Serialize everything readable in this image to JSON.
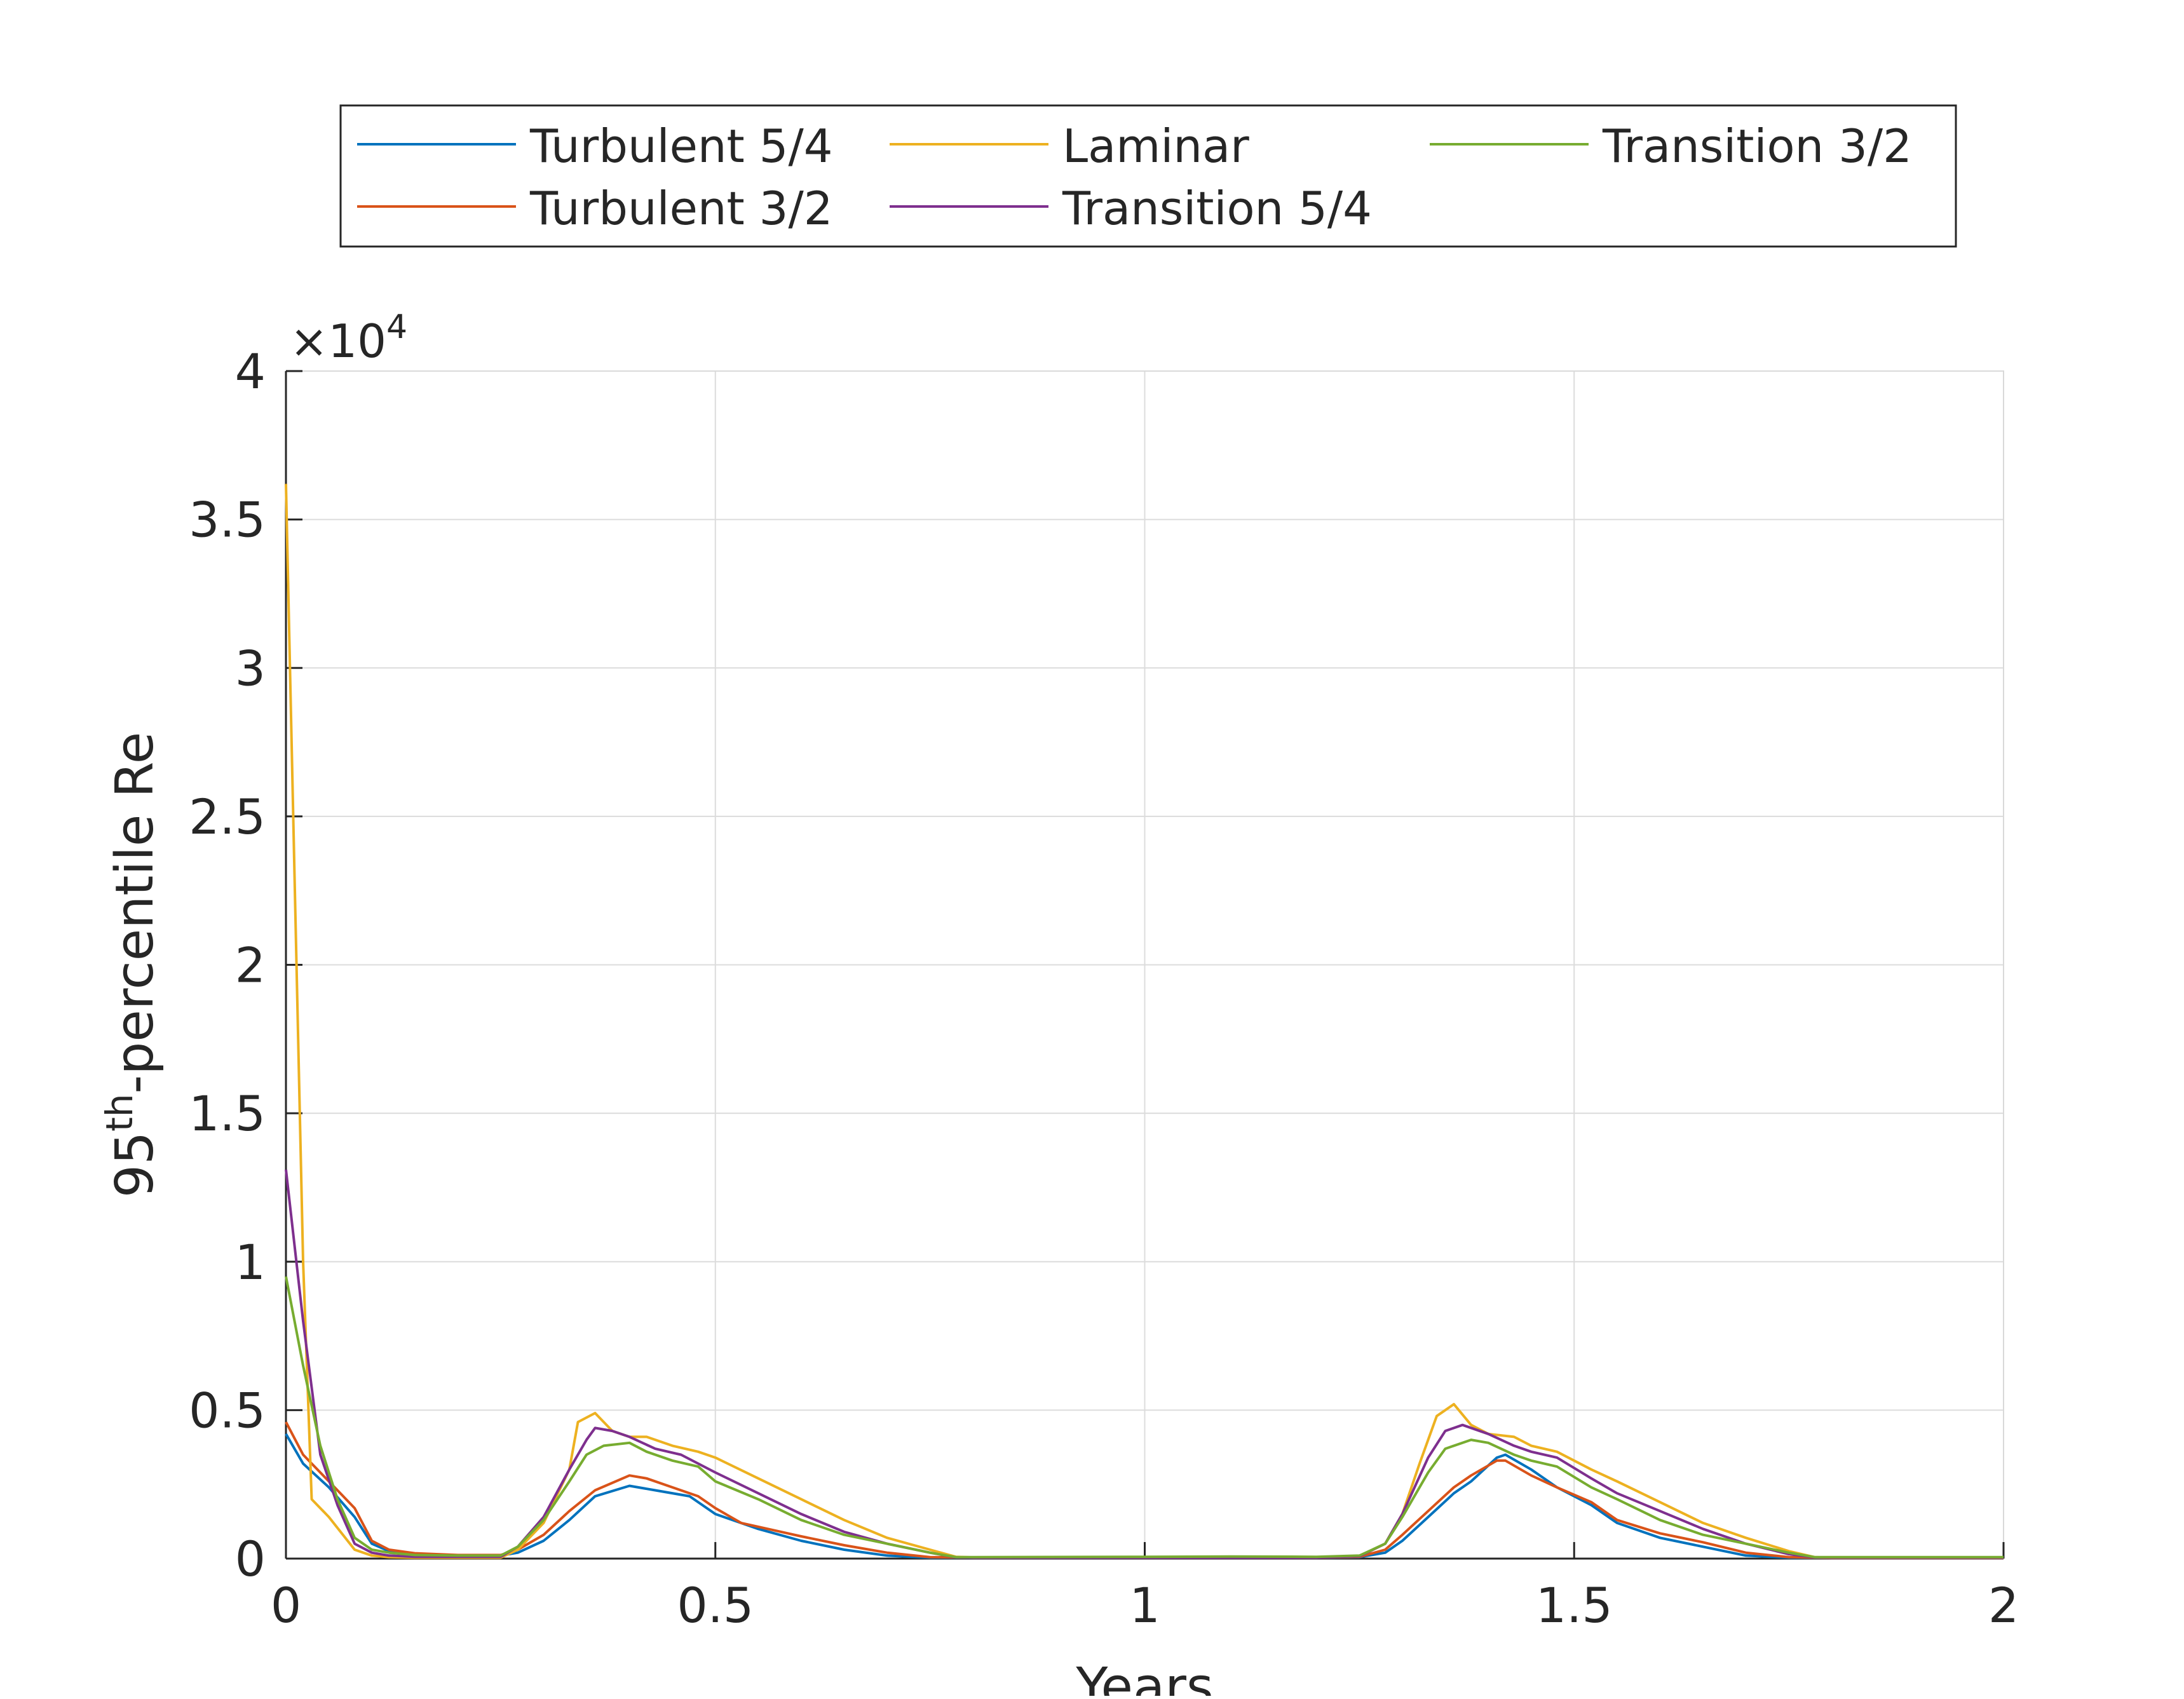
{
  "chart_data": {
    "type": "line",
    "title": "",
    "xlabel": "Years",
    "ylabel_base": "95",
    "ylabel_sup": "th",
    "ylabel_rest": "-percentile Re",
    "y_exponent_prefix": "×10",
    "y_exponent": "4",
    "xlim": [
      0,
      2
    ],
    "ylim": [
      0,
      4
    ],
    "xticks": [
      0,
      0.5,
      1,
      1.5,
      2
    ],
    "xtick_labels": [
      "0",
      "0.5",
      "1",
      "1.5",
      "2"
    ],
    "yticks": [
      0,
      0.5,
      1,
      1.5,
      2,
      2.5,
      3,
      3.5,
      4
    ],
    "ytick_labels": [
      "0",
      "0.5",
      "1",
      "1.5",
      "2",
      "2.5",
      "3",
      "3.5",
      "4"
    ],
    "grid": true,
    "legend_position": "top-outside",
    "series": [
      {
        "name": "Turbulent 5/4",
        "color": "#0072bd",
        "points": [
          [
            0,
            0.42
          ],
          [
            0.02,
            0.32
          ],
          [
            0.05,
            0.24
          ],
          [
            0.08,
            0.14
          ],
          [
            0.1,
            0.05
          ],
          [
            0.12,
            0.025
          ],
          [
            0.15,
            0.015
          ],
          [
            0.2,
            0.01
          ],
          [
            0.25,
            0.01
          ],
          [
            0.27,
            0.02
          ],
          [
            0.3,
            0.06
          ],
          [
            0.33,
            0.13
          ],
          [
            0.36,
            0.21
          ],
          [
            0.4,
            0.245
          ],
          [
            0.43,
            0.23
          ],
          [
            0.47,
            0.21
          ],
          [
            0.5,
            0.15
          ],
          [
            0.55,
            0.1
          ],
          [
            0.6,
            0.06
          ],
          [
            0.65,
            0.03
          ],
          [
            0.7,
            0.01
          ],
          [
            0.75,
            0.003
          ],
          [
            0.8,
            0.003
          ],
          [
            1.0,
            0.003
          ],
          [
            1.2,
            0.003
          ],
          [
            1.25,
            0.005
          ],
          [
            1.28,
            0.02
          ],
          [
            1.3,
            0.06
          ],
          [
            1.33,
            0.14
          ],
          [
            1.36,
            0.22
          ],
          [
            1.38,
            0.26
          ],
          [
            1.41,
            0.34
          ],
          [
            1.42,
            0.35
          ],
          [
            1.45,
            0.3
          ],
          [
            1.48,
            0.24
          ],
          [
            1.52,
            0.18
          ],
          [
            1.55,
            0.12
          ],
          [
            1.6,
            0.07
          ],
          [
            1.65,
            0.04
          ],
          [
            1.7,
            0.01
          ],
          [
            1.75,
            0.003
          ],
          [
            1.8,
            0.002
          ],
          [
            2.0,
            0.002
          ]
        ]
      },
      {
        "name": "Turbulent 3/2",
        "color": "#d95319",
        "points": [
          [
            0,
            0.46
          ],
          [
            0.02,
            0.35
          ],
          [
            0.05,
            0.26
          ],
          [
            0.08,
            0.17
          ],
          [
            0.1,
            0.06
          ],
          [
            0.12,
            0.03
          ],
          [
            0.15,
            0.018
          ],
          [
            0.2,
            0.012
          ],
          [
            0.25,
            0.012
          ],
          [
            0.27,
            0.03
          ],
          [
            0.3,
            0.08
          ],
          [
            0.33,
            0.16
          ],
          [
            0.36,
            0.23
          ],
          [
            0.4,
            0.28
          ],
          [
            0.42,
            0.27
          ],
          [
            0.45,
            0.24
          ],
          [
            0.48,
            0.21
          ],
          [
            0.5,
            0.17
          ],
          [
            0.53,
            0.12
          ],
          [
            0.6,
            0.075
          ],
          [
            0.65,
            0.045
          ],
          [
            0.7,
            0.02
          ],
          [
            0.75,
            0.005
          ],
          [
            0.8,
            0.003
          ],
          [
            1.0,
            0.003
          ],
          [
            1.2,
            0.003
          ],
          [
            1.25,
            0.006
          ],
          [
            1.28,
            0.03
          ],
          [
            1.3,
            0.08
          ],
          [
            1.33,
            0.16
          ],
          [
            1.36,
            0.24
          ],
          [
            1.38,
            0.28
          ],
          [
            1.41,
            0.33
          ],
          [
            1.42,
            0.33
          ],
          [
            1.45,
            0.28
          ],
          [
            1.48,
            0.24
          ],
          [
            1.52,
            0.19
          ],
          [
            1.55,
            0.13
          ],
          [
            1.6,
            0.085
          ],
          [
            1.65,
            0.055
          ],
          [
            1.7,
            0.02
          ],
          [
            1.75,
            0.005
          ],
          [
            1.8,
            0.002
          ],
          [
            2.0,
            0.002
          ]
        ]
      },
      {
        "name": "Laminar",
        "color": "#edb120",
        "points": [
          [
            0,
            3.62
          ],
          [
            0.01,
            2.3
          ],
          [
            0.02,
            1.0
          ],
          [
            0.03,
            0.2
          ],
          [
            0.05,
            0.14
          ],
          [
            0.08,
            0.03
          ],
          [
            0.1,
            0.01
          ],
          [
            0.12,
            0.005
          ],
          [
            0.15,
            0.003
          ],
          [
            0.2,
            0.003
          ],
          [
            0.25,
            0.003
          ],
          [
            0.27,
            0.03
          ],
          [
            0.3,
            0.12
          ],
          [
            0.33,
            0.3
          ],
          [
            0.34,
            0.46
          ],
          [
            0.36,
            0.49
          ],
          [
            0.38,
            0.43
          ],
          [
            0.4,
            0.41
          ],
          [
            0.42,
            0.41
          ],
          [
            0.45,
            0.38
          ],
          [
            0.48,
            0.36
          ],
          [
            0.5,
            0.34
          ],
          [
            0.55,
            0.27
          ],
          [
            0.6,
            0.2
          ],
          [
            0.65,
            0.13
          ],
          [
            0.7,
            0.07
          ],
          [
            0.75,
            0.03
          ],
          [
            0.78,
            0.006
          ],
          [
            0.8,
            0.004
          ],
          [
            1.0,
            0.004
          ],
          [
            1.2,
            0.004
          ],
          [
            1.25,
            0.008
          ],
          [
            1.28,
            0.05
          ],
          [
            1.3,
            0.15
          ],
          [
            1.32,
            0.32
          ],
          [
            1.34,
            0.48
          ],
          [
            1.36,
            0.52
          ],
          [
            1.38,
            0.45
          ],
          [
            1.4,
            0.42
          ],
          [
            1.43,
            0.41
          ],
          [
            1.45,
            0.38
          ],
          [
            1.48,
            0.36
          ],
          [
            1.52,
            0.3
          ],
          [
            1.55,
            0.26
          ],
          [
            1.6,
            0.19
          ],
          [
            1.65,
            0.12
          ],
          [
            1.7,
            0.07
          ],
          [
            1.75,
            0.025
          ],
          [
            1.78,
            0.005
          ],
          [
            1.8,
            0.003
          ],
          [
            2.0,
            0.003
          ]
        ]
      },
      {
        "name": "Transition 5/4",
        "color": "#7e2f8e",
        "points": [
          [
            0,
            1.31
          ],
          [
            0.02,
            0.8
          ],
          [
            0.04,
            0.35
          ],
          [
            0.06,
            0.18
          ],
          [
            0.08,
            0.05
          ],
          [
            0.1,
            0.02
          ],
          [
            0.12,
            0.01
          ],
          [
            0.15,
            0.006
          ],
          [
            0.2,
            0.006
          ],
          [
            0.25,
            0.006
          ],
          [
            0.27,
            0.04
          ],
          [
            0.3,
            0.14
          ],
          [
            0.33,
            0.3
          ],
          [
            0.35,
            0.4
          ],
          [
            0.36,
            0.44
          ],
          [
            0.38,
            0.43
          ],
          [
            0.4,
            0.41
          ],
          [
            0.43,
            0.37
          ],
          [
            0.46,
            0.35
          ],
          [
            0.5,
            0.29
          ],
          [
            0.55,
            0.22
          ],
          [
            0.6,
            0.15
          ],
          [
            0.65,
            0.09
          ],
          [
            0.7,
            0.05
          ],
          [
            0.75,
            0.02
          ],
          [
            0.78,
            0.004
          ],
          [
            0.8,
            0.003
          ],
          [
            1.0,
            0.003
          ],
          [
            1.2,
            0.003
          ],
          [
            1.25,
            0.008
          ],
          [
            1.28,
            0.05
          ],
          [
            1.3,
            0.15
          ],
          [
            1.33,
            0.34
          ],
          [
            1.35,
            0.43
          ],
          [
            1.37,
            0.45
          ],
          [
            1.4,
            0.42
          ],
          [
            1.43,
            0.38
          ],
          [
            1.45,
            0.36
          ],
          [
            1.48,
            0.34
          ],
          [
            1.52,
            0.27
          ],
          [
            1.55,
            0.22
          ],
          [
            1.6,
            0.16
          ],
          [
            1.65,
            0.1
          ],
          [
            1.7,
            0.05
          ],
          [
            1.75,
            0.015
          ],
          [
            1.78,
            0.004
          ],
          [
            1.8,
            0.003
          ],
          [
            2.0,
            0.003
          ]
        ]
      },
      {
        "name": "Transition 3/2",
        "color": "#77ac30",
        "points": [
          [
            0,
            0.95
          ],
          [
            0.02,
            0.65
          ],
          [
            0.04,
            0.38
          ],
          [
            0.06,
            0.2
          ],
          [
            0.08,
            0.07
          ],
          [
            0.1,
            0.03
          ],
          [
            0.12,
            0.02
          ],
          [
            0.15,
            0.012
          ],
          [
            0.2,
            0.01
          ],
          [
            0.25,
            0.01
          ],
          [
            0.27,
            0.04
          ],
          [
            0.3,
            0.13
          ],
          [
            0.33,
            0.26
          ],
          [
            0.35,
            0.35
          ],
          [
            0.37,
            0.38
          ],
          [
            0.4,
            0.39
          ],
          [
            0.42,
            0.36
          ],
          [
            0.45,
            0.33
          ],
          [
            0.48,
            0.31
          ],
          [
            0.5,
            0.26
          ],
          [
            0.55,
            0.2
          ],
          [
            0.6,
            0.13
          ],
          [
            0.65,
            0.08
          ],
          [
            0.7,
            0.05
          ],
          [
            0.75,
            0.02
          ],
          [
            0.78,
            0.005
          ],
          [
            0.8,
            0.005
          ],
          [
            1.0,
            0.006
          ],
          [
            1.1,
            0.007
          ],
          [
            1.2,
            0.006
          ],
          [
            1.25,
            0.01
          ],
          [
            1.28,
            0.05
          ],
          [
            1.3,
            0.14
          ],
          [
            1.33,
            0.29
          ],
          [
            1.35,
            0.37
          ],
          [
            1.38,
            0.4
          ],
          [
            1.4,
            0.39
          ],
          [
            1.43,
            0.35
          ],
          [
            1.45,
            0.33
          ],
          [
            1.48,
            0.31
          ],
          [
            1.52,
            0.24
          ],
          [
            1.55,
            0.2
          ],
          [
            1.6,
            0.13
          ],
          [
            1.65,
            0.08
          ],
          [
            1.7,
            0.05
          ],
          [
            1.75,
            0.02
          ],
          [
            1.78,
            0.005
          ],
          [
            1.8,
            0.005
          ],
          [
            2.0,
            0.005
          ]
        ]
      }
    ]
  }
}
